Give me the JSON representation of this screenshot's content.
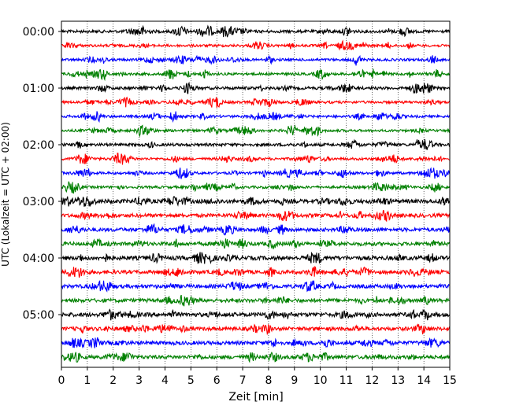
{
  "chart_data": {
    "type": "line",
    "title": "",
    "xlabel": "Zeit  [min]",
    "ylabel": "UTC (Lokalzeit = UTC + 02:00)",
    "xlim": [
      0,
      15
    ],
    "x_ticks": [
      "0",
      "1",
      "2",
      "3",
      "4",
      "5",
      "6",
      "7",
      "8",
      "9",
      "10",
      "11",
      "12",
      "13",
      "14",
      "15"
    ],
    "y_tick_labels": [
      "00:00",
      "01:00",
      "02:00",
      "03:00",
      "04:00",
      "05:00"
    ],
    "trace_interval_min": 15,
    "trace_count": 24,
    "trace_colors": [
      "#000000",
      "#ff0000",
      "#0000ff",
      "#008000"
    ],
    "grid": "vertical-dotted"
  }
}
